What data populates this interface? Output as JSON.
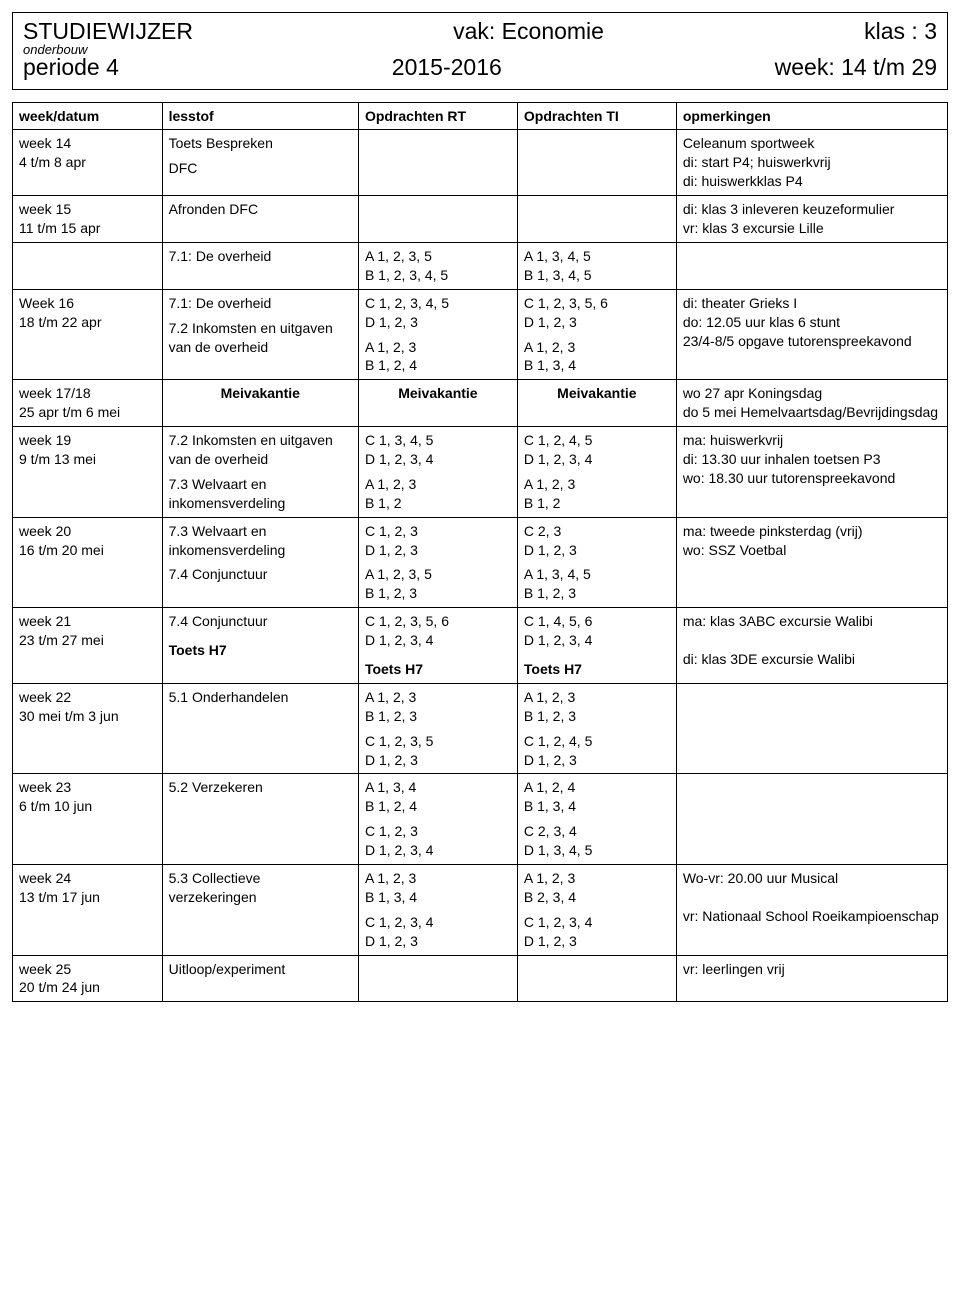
{
  "header": {
    "title": "STUDIEWIJZER",
    "vak_label": "vak: Economie",
    "klas_label": "klas : 3",
    "sub": "onderbouw",
    "periode": "periode 4",
    "jaar": "2015-2016",
    "week": "week: 14 t/m 29"
  },
  "columns": {
    "week": "week/datum",
    "lesstof": "lesstof",
    "rt": "Opdrachten RT",
    "ti": "Opdrachten TI",
    "opm": "opmerkingen"
  },
  "rows": [
    {
      "week_lines": [
        "week 14",
        "4 t/m 8 apr"
      ],
      "lesstof": [
        [
          "Toets Bespreken"
        ],
        [
          "DFC"
        ]
      ],
      "rt": [],
      "ti": [],
      "opm": [
        "Celeanum sportweek",
        "di: start P4; huiswerkvrij",
        "di: huiswerkklas P4"
      ]
    },
    {
      "week_lines": [
        "week 15",
        "11 t/m 15 apr"
      ],
      "lesstof": [
        [
          "Afronden DFC"
        ]
      ],
      "rt": [],
      "ti": [],
      "opm": [
        "di: klas 3 inleveren keuzeformulier",
        "vr: klas 3 excursie Lille"
      ]
    },
    {
      "week_lines": [
        ""
      ],
      "lesstof": [
        [
          "7.1: De overheid"
        ]
      ],
      "rt": [
        [
          "A 1, 2, 3, 5",
          "B 1, 2, 3, 4, 5"
        ]
      ],
      "ti": [
        [
          "A 1, 3, 4, 5",
          "B 1, 3, 4, 5"
        ]
      ],
      "opm": []
    },
    {
      "week_lines": [
        "Week 16",
        "18 t/m 22 apr"
      ],
      "lesstof": [
        [
          "7.1: De overheid"
        ],
        [
          "7.2 Inkomsten en uitgaven  van de overheid"
        ]
      ],
      "rt": [
        [
          "C 1, 2, 3, 4, 5",
          "D 1, 2, 3"
        ],
        [
          "A 1, 2, 3",
          "B 1, 2, 4"
        ]
      ],
      "ti": [
        [
          "C 1, 2, 3, 5, 6",
          "D 1, 2, 3"
        ],
        [
          "A 1, 2, 3",
          "B 1, 3, 4"
        ]
      ],
      "opm": [
        "di: theater Grieks I",
        "do: 12.05 uur klas 6 stunt",
        "23/4-8/5 opgave tutorenspreekavond"
      ]
    },
    {
      "week_lines": [
        "week 17/18",
        "25 apr t/m 6 mei"
      ],
      "lesstof_bold_center": "Meivakantie",
      "rt_bold_center": "Meivakantie",
      "ti_bold_center": "Meivakantie",
      "opm": [
        "wo 27 apr Koningsdag",
        "do 5 mei Hemelvaartsdag/Bevrijdingsdag"
      ]
    },
    {
      "week_lines": [
        "week 19",
        "9 t/m 13 mei"
      ],
      "lesstof": [
        [
          "7.2 Inkomsten en uitgaven van de overheid"
        ],
        [
          "7.3 Welvaart en inkomensverdeling"
        ]
      ],
      "rt": [
        [
          "C 1, 3, 4, 5",
          "D 1, 2, 3, 4"
        ],
        [
          "A 1, 2, 3",
          "B 1, 2"
        ]
      ],
      "ti": [
        [
          "C 1, 2, 4, 5",
          "D 1, 2, 3, 4"
        ],
        [
          "A 1, 2, 3",
          "B 1, 2"
        ]
      ],
      "opm": [
        "ma: huiswerkvrij",
        "di: 13.30 uur inhalen toetsen P3",
        "wo: 18.30 uur tutorenspreekavond"
      ]
    },
    {
      "week_lines": [
        "week 20",
        "16 t/m 20 mei"
      ],
      "lesstof": [
        [
          "7.3 Welvaart en inkomensverdeling"
        ],
        [
          "7.4 Conjunctuur"
        ]
      ],
      "rt": [
        [
          "C 1, 2, 3",
          "D 1, 2, 3"
        ],
        [
          "A 1, 2, 3, 5",
          "B 1, 2, 3"
        ]
      ],
      "ti": [
        [
          "C 2, 3",
          "D 1, 2, 3"
        ],
        [
          "A 1, 3, 4, 5",
          "B 1, 2, 3"
        ]
      ],
      "opm": [
        "ma: tweede pinksterdag (vrij)",
        "wo: SSZ Voetbal"
      ]
    },
    {
      "week_lines": [
        "week 21",
        "23 t/m 27 mei"
      ],
      "lesstof": [
        [
          "7.4 Conjunctuur"
        ]
      ],
      "lesstof_bold_footer": "Toets H7",
      "rt": [
        [
          "C 1, 2, 3, 5, 6",
          "D 1, 2, 3, 4"
        ]
      ],
      "rt_bold_footer": "Toets H7",
      "ti": [
        [
          "C 1, 4, 5, 6",
          "D 1, 2, 3, 4"
        ]
      ],
      "ti_bold_footer": "Toets H7",
      "opm": [
        "ma: klas 3ABC excursie Walibi",
        "",
        "di: klas 3DE excursie Walibi"
      ]
    },
    {
      "week_lines": [
        "week 22",
        "30 mei t/m 3 jun"
      ],
      "lesstof": [
        [
          "5.1 Onderhandelen"
        ]
      ],
      "rt": [
        [
          "A 1, 2, 3",
          "B  1, 2, 3"
        ],
        [
          "C 1, 2, 3, 5",
          "D 1, 2, 3"
        ]
      ],
      "ti": [
        [
          "A 1, 2, 3",
          "B 1, 2, 3"
        ],
        [
          "C 1, 2, 4, 5",
          "D 1, 2, 3"
        ]
      ],
      "opm": []
    },
    {
      "week_lines": [
        "week 23",
        "6 t/m 10 jun"
      ],
      "lesstof": [
        [
          "5.2 Verzekeren"
        ]
      ],
      "rt": [
        [
          "A 1, 3, 4",
          "B 1, 2, 4"
        ],
        [
          "C 1, 2, 3",
          "D 1, 2, 3, 4"
        ]
      ],
      "ti": [
        [
          "A 1, 2, 4",
          "B 1, 3, 4"
        ],
        [
          "C 2, 3, 4",
          "D 1, 3, 4, 5"
        ]
      ],
      "opm": []
    },
    {
      "week_lines": [
        "week 24",
        "13 t/m 17 jun"
      ],
      "lesstof": [
        [
          "5.3 Collectieve verzekeringen"
        ]
      ],
      "rt": [
        [
          "A 1, 2, 3",
          "B 1, 3, 4"
        ],
        [
          "C 1, 2, 3, 4",
          "D 1, 2, 3"
        ]
      ],
      "ti": [
        [
          "A 1, 2, 3",
          "B 2, 3, 4"
        ],
        [
          "C 1, 2, 3, 4",
          "D 1, 2, 3"
        ]
      ],
      "opm": [
        "Wo-vr: 20.00 uur Musical",
        "",
        "vr: Nationaal School Roeikampioenschap"
      ]
    },
    {
      "week_lines": [
        "week 25",
        "20 t/m 24 jun"
      ],
      "lesstof": [
        [
          "Uitloop/experiment"
        ]
      ],
      "rt": [],
      "ti": [],
      "opm": [
        "vr: leerlingen vrij"
      ]
    }
  ]
}
